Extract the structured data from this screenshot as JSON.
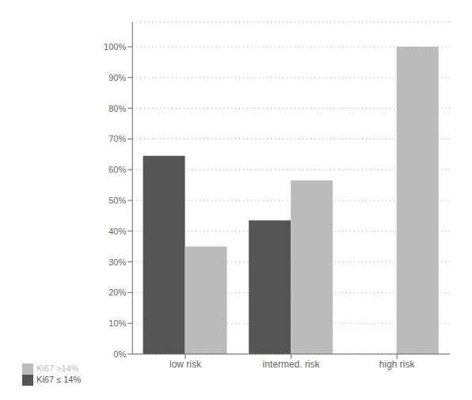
{
  "chart_data": {
    "type": "bar",
    "categories": [
      "low risk",
      "intermed. risk",
      "high risk"
    ],
    "series": [
      {
        "name": "Ki67 ≤ 14%",
        "color": "#555555",
        "values": [
          0.645,
          0.435,
          0.0
        ]
      },
      {
        "name": "Ki67 >14%",
        "color": "#bbbbbb",
        "values": [
          0.35,
          0.565,
          1.0
        ]
      }
    ],
    "ylim": [
      0,
      1.08
    ],
    "yticks": [
      {
        "value": 0.0,
        "label": "0%"
      },
      {
        "value": 0.1,
        "label": "10%"
      },
      {
        "value": 0.2,
        "label": "20%"
      },
      {
        "value": 0.3,
        "label": "30%"
      },
      {
        "value": 0.4,
        "label": "40%"
      },
      {
        "value": 0.5,
        "label": "50%"
      },
      {
        "value": 0.6,
        "label": "60%"
      },
      {
        "value": 0.7,
        "label": "70%"
      },
      {
        "value": 0.8,
        "label": "80%"
      },
      {
        "value": 0.9,
        "label": "90%"
      },
      {
        "value": 1.0,
        "label": "100%"
      }
    ],
    "grid": true,
    "legend": "bottom"
  }
}
